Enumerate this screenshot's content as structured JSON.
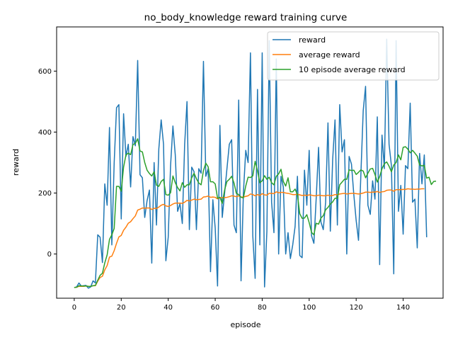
{
  "chart_data": {
    "type": "line",
    "title": "no_body_knowledge reward training curve",
    "xlabel": "episode",
    "ylabel": "reward",
    "xlim": [
      -7.5,
      157
    ],
    "ylim": [
      -145,
      745
    ],
    "xticks": [
      0,
      20,
      40,
      60,
      80,
      100,
      120,
      140
    ],
    "yticks": [
      0,
      200,
      400,
      600
    ],
    "grid": false,
    "legend_position": "top-right",
    "series": [
      {
        "name": "reward",
        "color": "#1f77b4",
        "values": [
          -110,
          -108,
          -95,
          -105,
          -104,
          -103,
          -112,
          -108,
          -88,
          -95,
          63,
          55,
          -28,
          230,
          160,
          415,
          30,
          300,
          480,
          490,
          115,
          460,
          320,
          360,
          220,
          385,
          355,
          635,
          260,
          250,
          120,
          175,
          210,
          -30,
          300,
          95,
          345,
          440,
          360,
          -22,
          55,
          290,
          420,
          325,
          140,
          165,
          100,
          360,
          500,
          80,
          285,
          270,
          80,
          280,
          265,
          632,
          255,
          280,
          -58,
          178,
          85,
          -105,
          422,
          120,
          200,
          280,
          360,
          375,
          95,
          70,
          505,
          -88,
          200,
          340,
          300,
          660,
          60,
          -80,
          540,
          30,
          660,
          -108,
          75,
          700,
          170,
          70,
          640,
          0,
          255,
          220,
          0,
          70,
          -15,
          30,
          90,
          255,
          -5,
          -12,
          275,
          160,
          340,
          60,
          35,
          185,
          350,
          105,
          80,
          170,
          430,
          75,
          310,
          440,
          95,
          490,
          335,
          375,
          0,
          320,
          295,
          195,
          110,
          45,
          260,
          470,
          550,
          160,
          130,
          240,
          180,
          450,
          -35,
          390,
          280,
          705,
          360,
          290,
          -65,
          700,
          140,
          225,
          65,
          290,
          280,
          495,
          170,
          180,
          20,
          330,
          230,
          325,
          55
        ]
      },
      {
        "name": "average reward",
        "color": "#ff7f0e",
        "values": [
          -110,
          -109,
          -106,
          -106,
          -106,
          -105,
          -106,
          -106,
          -104,
          -104,
          -89,
          -77,
          -73,
          -52,
          -38,
          -10,
          -7,
          11,
          35,
          56,
          61,
          78,
          88,
          101,
          106,
          116,
          125,
          144,
          147,
          151,
          150,
          151,
          151,
          146,
          150,
          149,
          154,
          160,
          163,
          158,
          156,
          159,
          164,
          167,
          167,
          167,
          166,
          170,
          176,
          174,
          177,
          180,
          178,
          179,
          180,
          187,
          188,
          190,
          186,
          187,
          186,
          181,
          185,
          185,
          185,
          186,
          188,
          191,
          190,
          188,
          191,
          187,
          187,
          189,
          191,
          197,
          195,
          191,
          195,
          192,
          198,
          194,
          193,
          199,
          199,
          198,
          204,
          201,
          202,
          202,
          200,
          199,
          197,
          195,
          195,
          196,
          194,
          192,
          193,
          192,
          194,
          193,
          191,
          191,
          193,
          192,
          191,
          191,
          193,
          191,
          192,
          195,
          194,
          197,
          198,
          199,
          197,
          198,
          199,
          199,
          198,
          197,
          198,
          200,
          203,
          203,
          202,
          203,
          203,
          205,
          202,
          204,
          205,
          209,
          210,
          210,
          206,
          211,
          211,
          211,
          212,
          212,
          214,
          213,
          213,
          212,
          213,
          213,
          214,
          214
        ]
      },
      {
        "name": "10 episode average reward",
        "color": "#2ca02c",
        "values": [
          -110,
          -109,
          -104,
          -105,
          -105,
          -105,
          -106,
          -106,
          -104,
          -103,
          -86,
          -70,
          -63,
          -29,
          -3,
          48,
          63,
          84,
          222,
          222,
          206,
          285,
          325,
          331,
          326,
          359,
          363,
          378,
          338,
          335,
          300,
          275,
          264,
          256,
          270,
          226,
          222,
          238,
          245,
          195,
          193,
          201,
          256,
          234,
          218,
          207,
          234,
          219,
          227,
          227,
          250,
          265,
          247,
          233,
          227,
          274,
          298,
          286,
          237,
          237,
          230,
          183,
          186,
          166,
          210,
          238,
          245,
          255,
          233,
          199,
          195,
          186,
          184,
          223,
          252,
          251,
          256,
          304,
          273,
          234,
          240,
          257,
          245,
          252,
          234,
          227,
          255,
          263,
          278,
          238,
          223,
          250,
          204,
          204,
          213,
          195,
          132,
          117,
          118,
          129,
          103,
          71,
          63,
          101,
          98,
          118,
          126,
          145,
          153,
          164,
          171,
          183,
          183,
          227,
          236,
          245,
          245,
          276,
          274,
          275,
          261,
          268,
          276,
          272,
          250,
          265,
          279,
          281,
          261,
          236,
          254,
          280,
          296,
          302,
          288,
          270,
          292,
          300,
          325,
          309,
          350,
          352,
          344,
          332,
          340,
          331,
          321,
          292,
          289,
          291,
          249,
          252,
          228,
          238,
          239
        ]
      }
    ]
  }
}
